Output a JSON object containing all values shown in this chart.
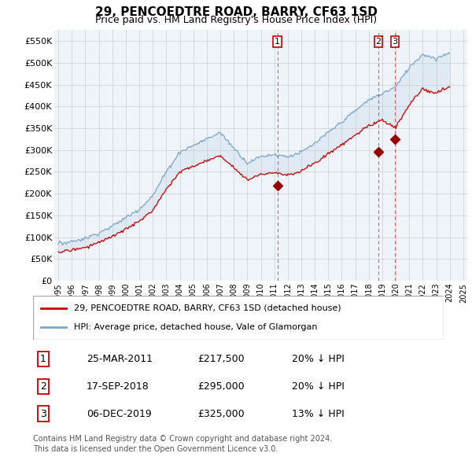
{
  "title": "29, PENCOEDTRE ROAD, BARRY, CF63 1SD",
  "subtitle": "Price paid vs. HM Land Registry's House Price Index (HPI)",
  "ylabel_ticks": [
    "£0",
    "£50K",
    "£100K",
    "£150K",
    "£200K",
    "£250K",
    "£300K",
    "£350K",
    "£400K",
    "£450K",
    "£500K",
    "£550K"
  ],
  "ytick_values": [
    0,
    50000,
    100000,
    150000,
    200000,
    250000,
    300000,
    350000,
    400000,
    450000,
    500000,
    550000
  ],
  "ylim": [
    0,
    575000
  ],
  "xlim_start": 1994.7,
  "xlim_end": 2025.3,
  "red_line_color": "#cc0000",
  "blue_line_color": "#7ba7c9",
  "fill_color": "#dce8f3",
  "marker_color": "#990000",
  "grid_color": "#cccccc",
  "background_color": "#ffffff",
  "chart_bg_color": "#eef4fa",
  "legend_label_red": "29, PENCOEDTRE ROAD, BARRY, CF63 1SD (detached house)",
  "legend_label_blue": "HPI: Average price, detached house, Vale of Glamorgan",
  "transactions": [
    {
      "id": 1,
      "date": "25-MAR-2011",
      "year": 2011.23,
      "price": 217500,
      "pct": "20%",
      "dir": "↓",
      "label": "1"
    },
    {
      "id": 2,
      "date": "17-SEP-2018",
      "year": 2018.71,
      "price": 295000,
      "pct": "20%",
      "dir": "↓",
      "label": "2"
    },
    {
      "id": 3,
      "date": "06-DEC-2019",
      "year": 2019.92,
      "price": 325000,
      "pct": "13%",
      "dir": "↓",
      "label": "3"
    }
  ],
  "footer_line1": "Contains HM Land Registry data © Crown copyright and database right 2024.",
  "footer_line2": "This data is licensed under the Open Government Licence v3.0.",
  "xtick_years": [
    1995,
    1996,
    1997,
    1998,
    1999,
    2000,
    2001,
    2002,
    2003,
    2004,
    2005,
    2006,
    2007,
    2008,
    2009,
    2010,
    2011,
    2012,
    2013,
    2014,
    2015,
    2016,
    2017,
    2018,
    2019,
    2020,
    2021,
    2022,
    2023,
    2024,
    2025
  ]
}
